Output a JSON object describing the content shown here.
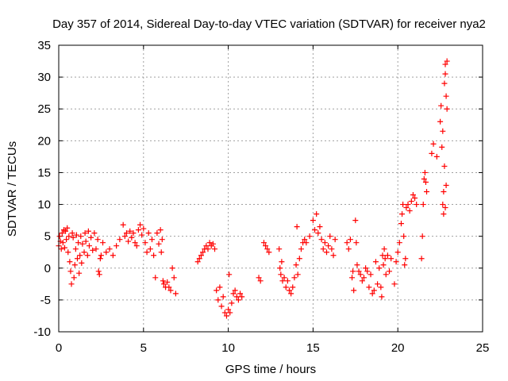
{
  "chart_data": {
    "type": "scatter",
    "title": "Day 357 of 2014, Sidereal Day-to-day VTEC variation (SDTVAR) for receiver nya2",
    "xlabel": "GPS time / hours",
    "ylabel": "SDTVAR / TECUs",
    "xlim": [
      0,
      25
    ],
    "ylim": [
      -10,
      35
    ],
    "xticks": [
      0,
      5,
      10,
      15,
      20,
      25
    ],
    "yticks": [
      -10,
      -5,
      0,
      5,
      10,
      15,
      20,
      25,
      30,
      35
    ],
    "grid": true,
    "marker": "+",
    "color": "#ff0000",
    "series": [
      {
        "name": "SDTVAR",
        "points": [
          [
            0.0,
            3.5
          ],
          [
            0.05,
            5.0
          ],
          [
            0.1,
            4.2
          ],
          [
            0.15,
            3.0
          ],
          [
            0.2,
            5.5
          ],
          [
            0.25,
            4.0
          ],
          [
            0.3,
            6.0
          ],
          [
            0.35,
            3.2
          ],
          [
            0.4,
            5.8
          ],
          [
            0.45,
            4.5
          ],
          [
            0.5,
            6.3
          ],
          [
            0.55,
            2.5
          ],
          [
            0.6,
            5.0
          ],
          [
            0.65,
            1.0
          ],
          [
            0.7,
            -0.5
          ],
          [
            0.75,
            -2.5
          ],
          [
            0.8,
            5.5
          ],
          [
            0.85,
            4.8
          ],
          [
            0.9,
            -1.5
          ],
          [
            0.95,
            0.5
          ],
          [
            1.0,
            3.0
          ],
          [
            1.05,
            5.2
          ],
          [
            1.1,
            1.5
          ],
          [
            1.15,
            4.0
          ],
          [
            1.2,
            -0.8
          ],
          [
            1.25,
            2.0
          ],
          [
            1.3,
            5.0
          ],
          [
            1.35,
            0.8
          ],
          [
            1.4,
            3.8
          ],
          [
            1.5,
            2.5
          ],
          [
            1.55,
            5.5
          ],
          [
            1.6,
            4.2
          ],
          [
            1.7,
            2.0
          ],
          [
            1.75,
            5.8
          ],
          [
            1.8,
            3.5
          ],
          [
            1.9,
            4.8
          ],
          [
            2.0,
            2.8
          ],
          [
            2.1,
            5.5
          ],
          [
            2.2,
            3.0
          ],
          [
            2.3,
            4.5
          ],
          [
            2.35,
            -0.5
          ],
          [
            2.4,
            -1.0
          ],
          [
            2.45,
            1.5
          ],
          [
            2.5,
            2.0
          ],
          [
            2.6,
            4.0
          ],
          [
            2.8,
            2.5
          ],
          [
            3.0,
            3.0
          ],
          [
            3.2,
            2.0
          ],
          [
            3.4,
            3.5
          ],
          [
            3.6,
            4.5
          ],
          [
            3.8,
            6.8
          ],
          [
            3.9,
            5.0
          ],
          [
            4.0,
            5.5
          ],
          [
            4.1,
            4.2
          ],
          [
            4.2,
            5.8
          ],
          [
            4.3,
            4.8
          ],
          [
            4.4,
            5.5
          ],
          [
            4.5,
            4.0
          ],
          [
            4.6,
            3.5
          ],
          [
            4.7,
            6.0
          ],
          [
            4.8,
            6.8
          ],
          [
            4.9,
            5.2
          ],
          [
            5.0,
            6.2
          ],
          [
            5.1,
            4.0
          ],
          [
            5.2,
            2.5
          ],
          [
            5.3,
            5.5
          ],
          [
            5.4,
            3.0
          ],
          [
            5.5,
            4.5
          ],
          [
            5.6,
            2.0
          ],
          [
            5.7,
            -1.5
          ],
          [
            5.8,
            5.5
          ],
          [
            5.9,
            3.8
          ],
          [
            6.0,
            6.0
          ],
          [
            6.05,
            2.5
          ],
          [
            6.1,
            4.5
          ],
          [
            6.15,
            -2.0
          ],
          [
            6.2,
            -2.5
          ],
          [
            6.3,
            -3.0
          ],
          [
            6.4,
            -2.2
          ],
          [
            6.5,
            -3.0
          ],
          [
            6.6,
            -3.5
          ],
          [
            6.7,
            0.0
          ],
          [
            6.8,
            -1.5
          ],
          [
            6.9,
            -4.0
          ],
          [
            8.2,
            1.0
          ],
          [
            8.3,
            1.5
          ],
          [
            8.4,
            2.0
          ],
          [
            8.5,
            2.5
          ],
          [
            8.6,
            3.0
          ],
          [
            8.7,
            3.5
          ],
          [
            8.8,
            3.0
          ],
          [
            8.9,
            4.0
          ],
          [
            9.0,
            3.5
          ],
          [
            9.1,
            3.8
          ],
          [
            9.2,
            3.0
          ],
          [
            9.3,
            -3.5
          ],
          [
            9.4,
            -5.0
          ],
          [
            9.5,
            -3.0
          ],
          [
            9.6,
            -6.0
          ],
          [
            9.7,
            -4.5
          ],
          [
            9.8,
            -7.0
          ],
          [
            9.9,
            -7.5
          ],
          [
            10.0,
            -6.5
          ],
          [
            10.05,
            -1.0
          ],
          [
            10.1,
            -7.0
          ],
          [
            10.2,
            -5.5
          ],
          [
            10.3,
            -4.0
          ],
          [
            10.4,
            -3.5
          ],
          [
            10.5,
            -4.5
          ],
          [
            10.6,
            -5.0
          ],
          [
            10.7,
            -4.0
          ],
          [
            10.8,
            -4.5
          ],
          [
            11.8,
            -1.5
          ],
          [
            11.9,
            -2.0
          ],
          [
            12.1,
            4.0
          ],
          [
            12.2,
            3.5
          ],
          [
            12.3,
            3.0
          ],
          [
            12.4,
            2.5
          ],
          [
            13.0,
            3.0
          ],
          [
            13.05,
            0.0
          ],
          [
            13.1,
            -1.0
          ],
          [
            13.15,
            1.0
          ],
          [
            13.2,
            -2.0
          ],
          [
            13.3,
            -1.5
          ],
          [
            13.4,
            -3.0
          ],
          [
            13.5,
            -2.0
          ],
          [
            13.6,
            -3.5
          ],
          [
            13.7,
            -4.0
          ],
          [
            13.8,
            -3.0
          ],
          [
            13.9,
            -1.5
          ],
          [
            14.0,
            0.5
          ],
          [
            14.05,
            6.5
          ],
          [
            14.1,
            -1.0
          ],
          [
            14.2,
            1.5
          ],
          [
            14.3,
            3.0
          ],
          [
            14.4,
            4.0
          ],
          [
            14.5,
            4.5
          ],
          [
            14.6,
            4.0
          ],
          [
            14.8,
            5.0
          ],
          [
            15.0,
            7.5
          ],
          [
            15.1,
            6.0
          ],
          [
            15.2,
            8.5
          ],
          [
            15.3,
            5.5
          ],
          [
            15.4,
            6.5
          ],
          [
            15.5,
            4.5
          ],
          [
            15.6,
            3.0
          ],
          [
            15.7,
            4.0
          ],
          [
            15.8,
            2.5
          ],
          [
            15.9,
            3.5
          ],
          [
            16.0,
            5.0
          ],
          [
            16.1,
            3.0
          ],
          [
            16.2,
            2.0
          ],
          [
            16.3,
            4.5
          ],
          [
            17.0,
            4.0
          ],
          [
            17.1,
            3.0
          ],
          [
            17.2,
            4.5
          ],
          [
            17.3,
            -1.5
          ],
          [
            17.35,
            -0.5
          ],
          [
            17.4,
            -3.5
          ],
          [
            17.5,
            7.5
          ],
          [
            17.55,
            4.0
          ],
          [
            17.6,
            0.5
          ],
          [
            17.7,
            -0.5
          ],
          [
            17.8,
            -1.0
          ],
          [
            17.9,
            -2.0
          ],
          [
            18.0,
            -1.5
          ],
          [
            18.1,
            0.0
          ],
          [
            18.2,
            -0.5
          ],
          [
            18.3,
            -3.0
          ],
          [
            18.4,
            -1.0
          ],
          [
            18.5,
            -4.0
          ],
          [
            18.6,
            -3.5
          ],
          [
            18.7,
            1.0
          ],
          [
            18.8,
            -2.5
          ],
          [
            18.9,
            0.0
          ],
          [
            19.0,
            -3.0
          ],
          [
            19.05,
            -4.5
          ],
          [
            19.1,
            2.0
          ],
          [
            19.15,
            0.5
          ],
          [
            19.2,
            3.0
          ],
          [
            19.25,
            1.5
          ],
          [
            19.3,
            -1.0
          ],
          [
            19.4,
            2.0
          ],
          [
            19.5,
            -0.5
          ],
          [
            19.6,
            1.5
          ],
          [
            19.8,
            -2.5
          ],
          [
            19.9,
            1.0
          ],
          [
            20.0,
            2.5
          ],
          [
            20.1,
            4.0
          ],
          [
            20.2,
            7.0
          ],
          [
            20.25,
            8.5
          ],
          [
            20.3,
            10.0
          ],
          [
            20.35,
            5.0
          ],
          [
            20.4,
            0.5
          ],
          [
            20.45,
            1.5
          ],
          [
            20.5,
            9.5
          ],
          [
            20.6,
            10.0
          ],
          [
            20.7,
            9.0
          ],
          [
            20.8,
            10.5
          ],
          [
            20.9,
            11.5
          ],
          [
            21.0,
            11.0
          ],
          [
            21.1,
            10.0
          ],
          [
            21.4,
            1.5
          ],
          [
            21.45,
            5.0
          ],
          [
            21.5,
            10.0
          ],
          [
            21.55,
            14.0
          ],
          [
            21.6,
            15.0
          ],
          [
            21.65,
            13.5
          ],
          [
            21.7,
            12.0
          ],
          [
            22.0,
            18.0
          ],
          [
            22.1,
            19.5
          ],
          [
            22.3,
            17.5
          ],
          [
            22.5,
            23.0
          ],
          [
            22.55,
            25.5
          ],
          [
            22.6,
            19.0
          ],
          [
            22.65,
            21.5
          ],
          [
            22.7,
            12.0
          ],
          [
            22.75,
            29.0
          ],
          [
            22.8,
            32.0
          ],
          [
            22.85,
            27.0
          ],
          [
            22.9,
            32.5
          ],
          [
            22.7,
            8.5
          ],
          [
            22.8,
            9.5
          ],
          [
            22.75,
            16.0
          ],
          [
            22.85,
            13.0
          ],
          [
            22.65,
            10.0
          ],
          [
            22.9,
            25.0
          ],
          [
            22.8,
            30.5
          ]
        ]
      }
    ]
  }
}
